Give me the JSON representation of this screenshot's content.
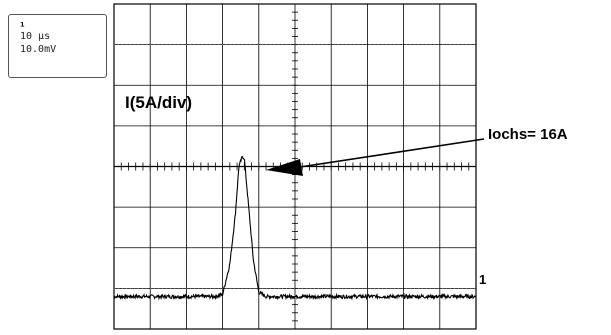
{
  "settings": {
    "marker": "¹",
    "timebase": "10 µs",
    "scale": "10.0mV"
  },
  "annotations": {
    "channel_label": "I(5A/div)",
    "peak_label": "Iochs= 16A",
    "trace_marker": "1"
  },
  "chart_data": {
    "type": "line",
    "title": "",
    "xlabel": "",
    "ylabel": "I(5A/div)",
    "x_unit": "div",
    "y_unit": "div",
    "xlim": [
      0,
      10
    ],
    "ylim": [
      -4,
      4
    ],
    "grid": true,
    "series": [
      {
        "x": [
          0,
          1,
          2,
          2.8,
          3.0,
          3.2,
          3.35,
          3.45,
          3.55,
          3.6,
          3.7,
          3.85,
          4.0,
          4.2,
          4.5,
          5,
          6,
          7,
          8,
          9,
          10
        ],
        "y": [
          -3.2,
          -3.2,
          -3.2,
          -3.2,
          -3.15,
          -2.4,
          -1.2,
          0.0,
          0.25,
          0.2,
          -0.8,
          -2.3,
          -3.1,
          -3.2,
          -3.2,
          -3.2,
          -3.2,
          -3.2,
          -3.2,
          -3.2,
          -3.2
        ],
        "peak_value_A": 16
      }
    ]
  }
}
